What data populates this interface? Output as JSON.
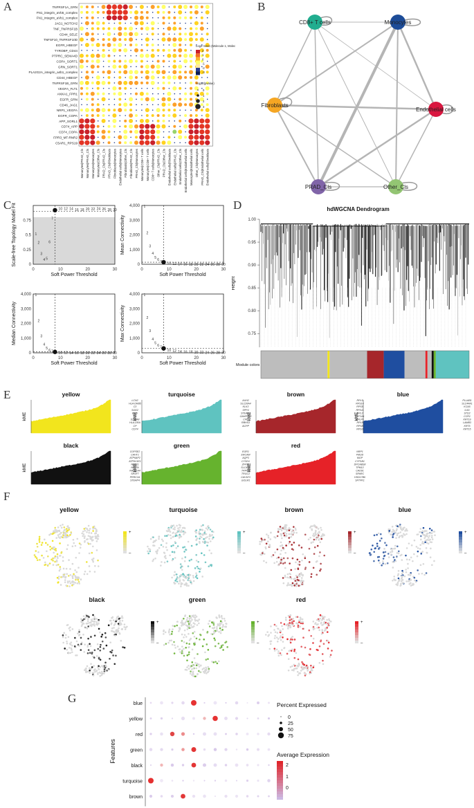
{
  "panel_labels": {
    "a": "A",
    "b": "B",
    "c": "C",
    "d": "D",
    "e": "E",
    "f": "F",
    "g": "G"
  },
  "colors": {
    "yellow": "#f2e51d",
    "turquoise": "#5fc3c0",
    "brown": "#a6262b",
    "blue": "#1f4ea0",
    "black": "#111111",
    "green": "#66b32e",
    "red": "#e62228",
    "grey": "#bdbdbd",
    "node_cd8": "#21ad8f",
    "node_mono": "#1d4c98",
    "node_fibro": "#f5a623",
    "node_endo": "#d9163f",
    "node_prad": "#8064a8",
    "node_other": "#93c573"
  },
  "chart_data": [
    {
      "id": "A",
      "type": "bubble-matrix",
      "title": "",
      "rows": [
        "TNFRSF1A_GRN",
        "FN1_integrin_aVb5_complex",
        "FN1_integrin_aVb1_complex",
        "JAG1_NOTCH2",
        "TNF_TNFRSF1B",
        "CD44_SELE",
        "TNFSF10_TNFRSF10D",
        "EGFR_HBEGF",
        "TYROBP_CD44",
        "PTPRC_SEMA4D",
        "COPA_SORT1",
        "GRN_SORT1",
        "PLA2G2A_integrin_a4b1_complex",
        "CD44_HBEGF",
        "TNFRSF1B_GRN",
        "VEGFA_FLT1",
        "ANXA1_FPR1",
        "EGFR_GRN",
        "CD46_JAG1",
        "NRP1_VEGFA",
        "EGFR_COPA",
        "APP_SORL1",
        "CD74_APP",
        "CD74_COPA",
        "FPR3_MT-RNR2",
        "C5AR1_RPS19"
      ],
      "columns": [
        "Monocytes|PRAD_Cls",
        "Monocytes|PRAD_Cls",
        "Monocytes|Monocytes",
        "Monocytes|Other_Cls",
        "PRAD_Cls|PRAD_Cls",
        "PRAD_Cls|Fibroblasts",
        "Fibroblasts|Monocytes",
        "Endothelial cells|Monocytes",
        "Fibroblasts|Other_Cls",
        "Fibroblasts|PRAD_Cls",
        "PRAD_Cls|Monocytes",
        "Monocytes|CD8+ T cells",
        "Monocytes|CD8+ T cells",
        "CD8+ T cells|Monocytes",
        "Other_Cls|PRAD_Cls",
        "PRAD_Cls|Other_Cls",
        "Endothelial cells|Fibroblasts",
        "Endothelial cells|PRAD_Cls",
        "Endothelial cells|Other_Cls",
        "Endothelial cells|Endothelial cells",
        "Monocytes|Endothelial cells",
        "Other_Cls|Monocytes",
        "PRAD_Cls|Endothelial cells",
        "Endothelial cells|Fibroblasts"
      ],
      "legend_title": "Log2 mean (Molecule 1, Molecule 2)",
      "legend_ticks": [
        "2",
        "1",
        "0",
        "-1",
        "-2",
        "-3"
      ],
      "size_title": "-log10(pvalue)",
      "size_ticks": [
        "0",
        "1",
        "2",
        "3"
      ]
    },
    {
      "id": "B",
      "type": "network",
      "nodes": [
        "CD8+ T cells",
        "Monocytes",
        "Fibroblasts",
        "Endothelial cells",
        "PRAD_Cls",
        "Other_Cls"
      ]
    },
    {
      "id": "C",
      "type": "line",
      "subplots": [
        {
          "ylabel": "Scale-free Topology Model Fit",
          "xlabel": "Soft Power Threshold",
          "xlim": [
            0,
            30
          ],
          "ylim": [
            0,
            1
          ],
          "yticks": [
            "0",
            "0.25",
            "0.5",
            "0.75"
          ],
          "xticks": [
            "0",
            "10",
            "20",
            "30"
          ],
          "points": [
            [
              1,
              0.52
            ],
            [
              2,
              0.37
            ],
            [
              3,
              0.18
            ],
            [
              4,
              0.08
            ],
            [
              5,
              0.1
            ],
            [
              6,
              0.38
            ],
            [
              7,
              0.78
            ],
            [
              8,
              0.92
            ],
            [
              10,
              0.95
            ],
            [
              12,
              0.95
            ],
            [
              14,
              0.95
            ],
            [
              16,
              0.93
            ],
            [
              18,
              0.93
            ],
            [
              20,
              0.94
            ],
            [
              22,
              0.94
            ],
            [
              24,
              0.95
            ],
            [
              26,
              0.94
            ],
            [
              28,
              0.93
            ],
            [
              30,
              0.93
            ]
          ],
          "threshold": 0.9
        },
        {
          "ylabel": "Mean Connectivity",
          "xlabel": "Soft Power Threshold",
          "xlim": [
            0,
            30
          ],
          "ylim": [
            0,
            4000
          ],
          "yticks": [
            "0",
            "1,000",
            "2,000",
            "3,000",
            "4,000"
          ],
          "xticks": [
            "0",
            "10",
            "20",
            "30"
          ],
          "points": [
            [
              1,
              3950
            ],
            [
              2,
              2150
            ],
            [
              3,
              1250
            ],
            [
              4,
              760
            ],
            [
              5,
              480
            ],
            [
              6,
              320
            ],
            [
              7,
              200
            ],
            [
              8,
              140
            ],
            [
              10,
              70
            ],
            [
              12,
              40
            ],
            [
              14,
              25
            ],
            [
              16,
              15
            ],
            [
              18,
              10
            ],
            [
              20,
              7
            ],
            [
              22,
              5
            ],
            [
              24,
              4
            ],
            [
              26,
              3
            ],
            [
              28,
              2
            ],
            [
              30,
              2
            ]
          ]
        },
        {
          "ylabel": "Median Connectivity",
          "xlabel": "Soft Power Threshold",
          "xlim": [
            0,
            30
          ],
          "ylim": [
            0,
            4000
          ],
          "yticks": [
            "0",
            "1,000",
            "2,000",
            "3,000",
            "4,000"
          ],
          "xticks": [
            "0",
            "10",
            "20",
            "30"
          ],
          "points": [
            [
              1,
              3950
            ],
            [
              2,
              2200
            ],
            [
              3,
              1150
            ],
            [
              4,
              600
            ],
            [
              5,
              330
            ],
            [
              6,
              180
            ],
            [
              7,
              110
            ],
            [
              8,
              60
            ],
            [
              10,
              25
            ],
            [
              12,
              12
            ],
            [
              14,
              6
            ],
            [
              16,
              3
            ],
            [
              18,
              2
            ],
            [
              20,
              1
            ],
            [
              22,
              1
            ],
            [
              24,
              1
            ],
            [
              26,
              0
            ],
            [
              28,
              0
            ],
            [
              30,
              0
            ]
          ]
        },
        {
          "ylabel": "Max Connectivity",
          "xlabel": "Soft Power Threshold",
          "xlim": [
            0,
            30
          ],
          "ylim": [
            0,
            4000
          ],
          "yticks": [
            "0",
            "1,000",
            "2,000",
            "3,000",
            "4,000"
          ],
          "xticks": [
            "0",
            "10",
            "20",
            "30"
          ],
          "points": [
            [
              1,
              3950
            ],
            [
              2,
              2400
            ],
            [
              3,
              1500
            ],
            [
              4,
              950
            ],
            [
              5,
              680
            ],
            [
              6,
              520
            ],
            [
              7,
              390
            ],
            [
              8,
              300
            ],
            [
              10,
              200
            ],
            [
              12,
              140
            ],
            [
              14,
              100
            ],
            [
              16,
              75
            ],
            [
              18,
              60
            ],
            [
              20,
              50
            ],
            [
              22,
              40
            ],
            [
              24,
              35
            ],
            [
              26,
              30
            ],
            [
              28,
              25
            ],
            [
              30,
              22
            ]
          ]
        }
      ]
    },
    {
      "id": "D",
      "type": "dendrogram",
      "title": "hdWGCNA Dendrogram",
      "ylabel": "Height",
      "yticks": [
        "1.00",
        "0.95",
        "0.90",
        "0.85",
        "0.80",
        "0.75"
      ],
      "ylim": [
        0.72,
        1.0
      ],
      "module_label": "Module colors",
      "module_segments": [
        {
          "color": "grey",
          "frac": 0.32
        },
        {
          "color": "yellow",
          "frac": 0.01
        },
        {
          "color": "grey",
          "frac": 0.18
        },
        {
          "color": "brown",
          "frac": 0.08
        },
        {
          "color": "blue",
          "frac": 0.1
        },
        {
          "color": "grey",
          "frac": 0.1
        },
        {
          "color": "red",
          "frac": 0.01
        },
        {
          "color": "grey",
          "frac": 0.02
        },
        {
          "color": "black",
          "frac": 0.01
        },
        {
          "color": "green",
          "frac": 0.01
        },
        {
          "color": "turquoise",
          "frac": 0.16
        }
      ]
    },
    {
      "id": "E",
      "type": "area",
      "ylabel": "kME",
      "modules": [
        {
          "name": "yellow",
          "genes": [
            "LCN2",
            "HLA-DRB5",
            "C3",
            "SOD2",
            "PI15",
            "C4",
            "S100A8",
            "HLA-DRA",
            "CP",
            "CD74"
          ]
        },
        {
          "name": "turquoise",
          "genes": [
            "AUH2",
            "SLC26A4",
            "KLK3",
            "SPP4",
            "STEAP2",
            "OAHR3S3",
            "CPE",
            "RBHS3",
            "ACPP"
          ]
        },
        {
          "name": "brown",
          "genes": [
            "RPL5",
            "RPS14",
            "RPS5",
            "RPS11",
            "RPL3",
            "EEF1A1",
            "RPLP0",
            "RPL8",
            "RPS8",
            "RPS3"
          ]
        },
        {
          "name": "blue",
          "genes": [
            "PLLAB1",
            "SLC44A1",
            "KCA5",
            "GJD",
            "STD2",
            "CCR1",
            "KRT19",
            "LAMB3",
            "KRT5",
            "KRT15"
          ]
        },
        {
          "name": "black",
          "genes": [
            "COPSE2",
            "CAHT1",
            "ATP6AP2",
            "ATP6V1E1",
            "NDE11",
            "NELFA",
            "RAB11A4",
            "SRSF7",
            "PRRC2A",
            "STEAP4"
          ]
        },
        {
          "name": "green",
          "genes": [
            "EGR1",
            "ERCAM",
            "AQP3",
            "CYSH1",
            "ZFP36",
            "SLC44A",
            "TRPM4",
            "TRGC2",
            "CAV1E3",
            "GOLM1"
          ]
        },
        {
          "name": "red",
          "genes": [
            "NRP1",
            "FMOD",
            "MGP",
            "CYP1B1",
            "DPCABS8",
            "TPM12",
            "CAD91",
            "SPARC",
            "HSD17B6",
            "SFTPK1"
          ]
        }
      ]
    },
    {
      "id": "F",
      "type": "scatter",
      "modules": [
        "yellow",
        "turquoise",
        "brown",
        "blue",
        "black",
        "green",
        "red"
      ],
      "legend_plus": "+",
      "legend_minus": "–"
    },
    {
      "id": "G",
      "type": "dot-plot",
      "ylabel": "Features",
      "rows": [
        "blue",
        "yellow",
        "red",
        "green",
        "black",
        "turquoise",
        "brown"
      ],
      "n_cols": 12,
      "size_title": "Percent Expressed",
      "size_ticks": [
        "0",
        "25",
        "50",
        "75"
      ],
      "color_title": "Average Expression",
      "color_ticks": [
        "2",
        "1",
        "0"
      ]
    }
  ]
}
